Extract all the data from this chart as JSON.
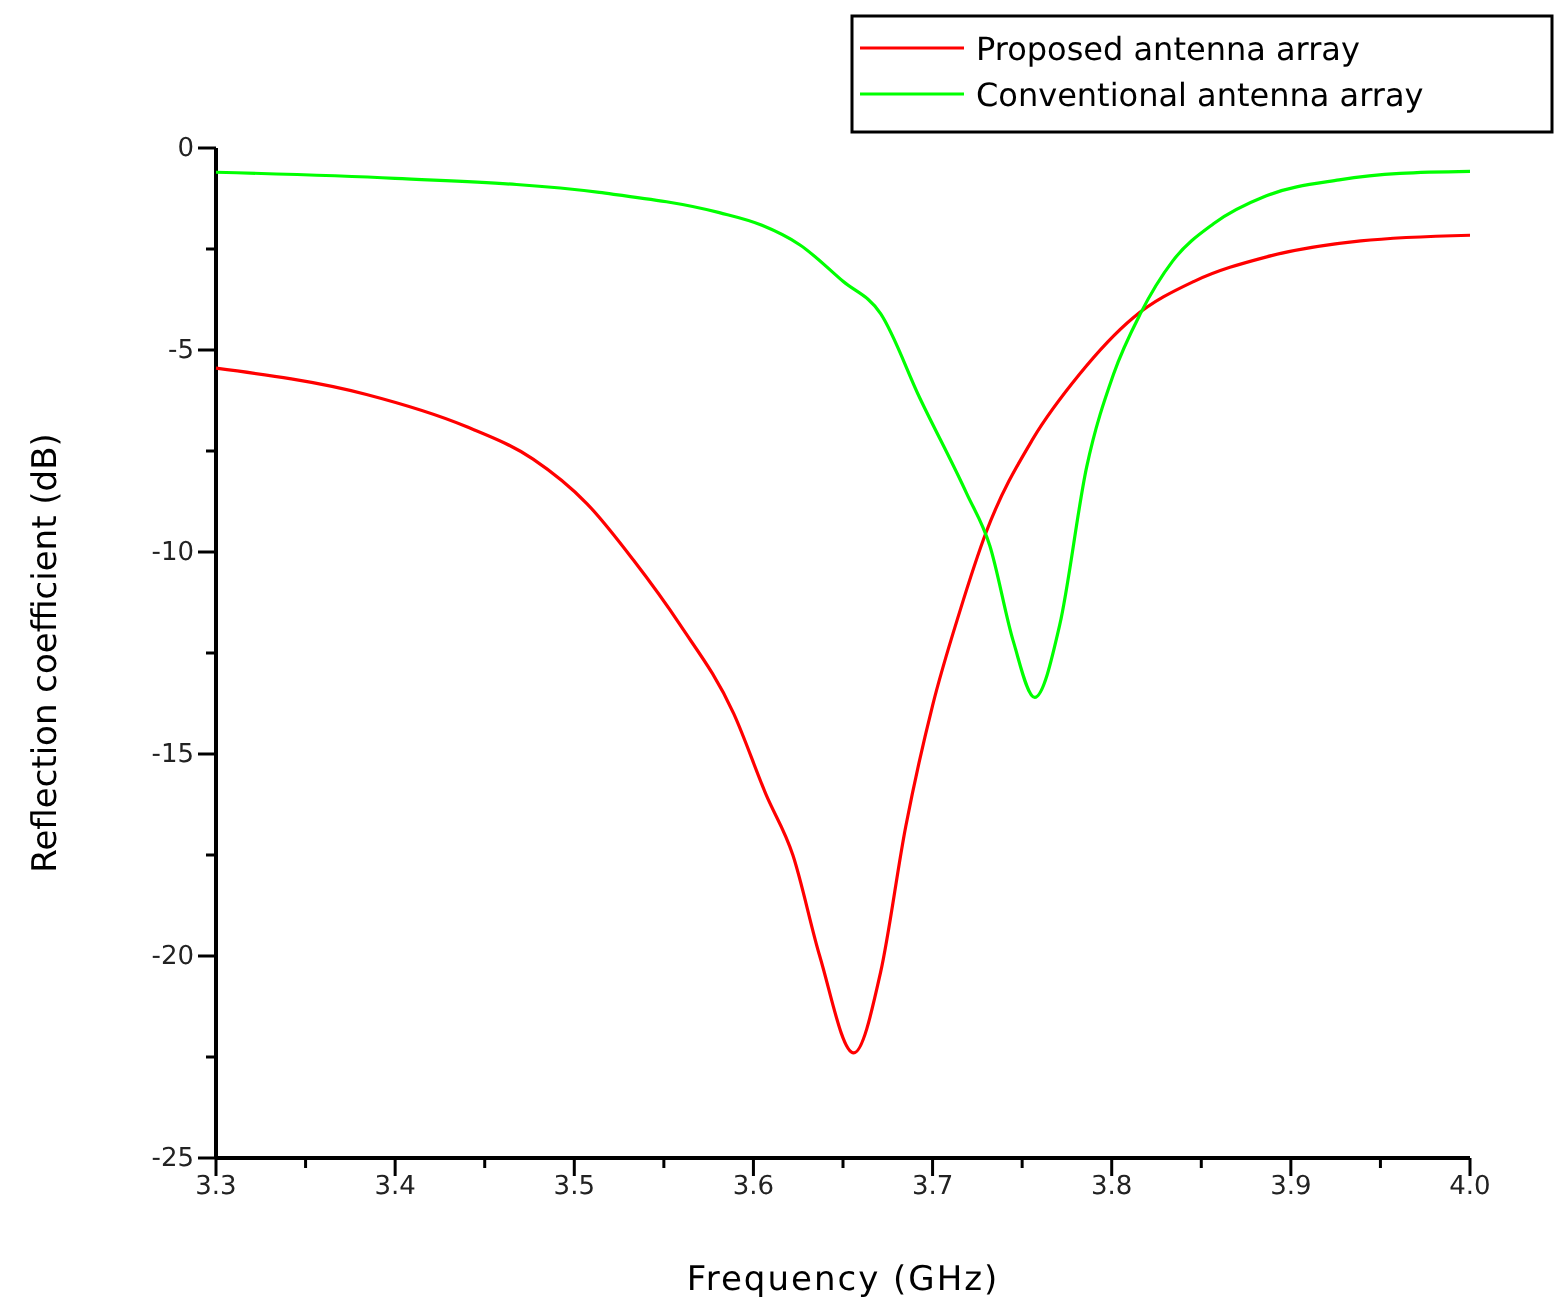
{
  "chart_data": {
    "type": "line",
    "xlabel": "Frequency (GHz)",
    "ylabel": "Reflection coefficient (dB)",
    "xlim": [
      3.3,
      4.0
    ],
    "xticks": [
      3.3,
      {
        "value": 3.35,
        "label": null
      },
      3.4,
      {
        "value": 3.45,
        "label": null
      },
      3.5,
      {
        "value": 3.55,
        "label": null
      },
      3.6,
      {
        "value": 3.65,
        "label": null
      },
      3.7,
      {
        "value": 3.75,
        "label": null
      },
      3.8,
      {
        "value": 3.85,
        "label": null
      },
      3.9,
      {
        "value": 3.95,
        "label": null
      },
      {
        "value": 4.0,
        "label": "4.0"
      }
    ],
    "ylim": [
      -25,
      0
    ],
    "yticks": [
      -25,
      {
        "value": -22.5,
        "label": null
      },
      -20,
      {
        "value": -17.5,
        "label": null
      },
      -15,
      {
        "value": -12.5,
        "label": null
      },
      -10,
      {
        "value": -7.5,
        "label": null
      },
      -5,
      {
        "value": -2.5,
        "label": null
      },
      0
    ],
    "grid": false,
    "legend": "top right",
    "line_style": "solid",
    "marker": "none",
    "series": [
      {
        "name": "Proposed antenna array",
        "color": "#ff0000",
        "x": [
          3.3,
          3.384,
          3.44,
          3.477,
          3.507,
          3.533,
          3.559,
          3.589,
          3.607,
          3.622,
          3.637,
          3.656,
          3.671,
          3.685,
          3.7,
          3.715,
          3.73,
          3.756,
          3.782,
          3.812,
          3.846,
          3.886,
          3.939,
          4.0
        ],
        "values": [
          -5.45,
          -6.1,
          -6.9,
          -7.7,
          -8.8,
          -10.2,
          -11.8,
          -14.0,
          -16.0,
          -17.5,
          -20.0,
          -22.4,
          -20.4,
          -16.8,
          -13.8,
          -11.5,
          -9.5,
          -7.2,
          -5.6,
          -4.2,
          -3.3,
          -2.7,
          -2.3,
          -2.16
        ]
      },
      {
        "name": "Conventional antenna array",
        "color": "#00ff00",
        "x": [
          3.3,
          3.4,
          3.514,
          3.581,
          3.604,
          3.626,
          3.65,
          3.671,
          3.693,
          3.719,
          3.732,
          3.745,
          3.757,
          3.771,
          3.786,
          3.801,
          3.816,
          3.834,
          3.857,
          3.886,
          3.927,
          3.961,
          4.0
        ],
        "values": [
          -0.6,
          -0.75,
          -1.1,
          -1.6,
          -1.9,
          -2.4,
          -3.3,
          -4.1,
          -6.2,
          -8.55,
          -9.85,
          -12.2,
          -13.6,
          -11.8,
          -7.9,
          -5.6,
          -4.1,
          -2.8,
          -1.87,
          -1.19,
          -0.79,
          -0.63,
          -0.58
        ]
      }
    ]
  }
}
